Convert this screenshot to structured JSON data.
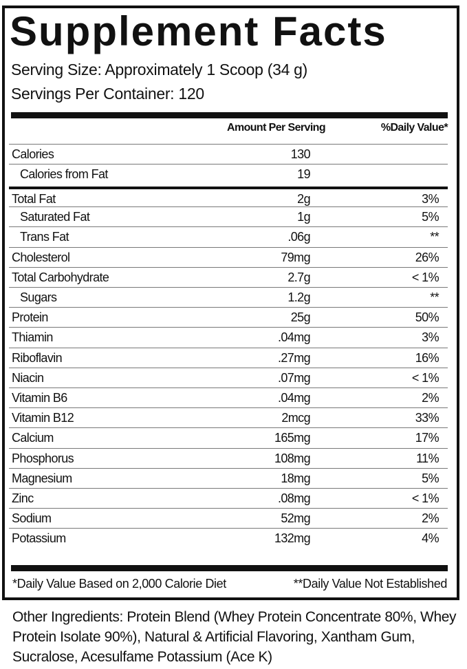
{
  "title": "Supplement Facts",
  "serving_size": "Serving Size: Approximately 1 Scoop (34 g)",
  "servings_per_container": "Servings Per Container: 120",
  "header": {
    "amount": "Amount Per Serving",
    "dv": "%Daily Value*"
  },
  "rows": [
    {
      "name": "Calories",
      "amount": "130",
      "dv": "",
      "indent": false
    },
    {
      "name": "Calories from Fat",
      "amount": "19",
      "dv": "",
      "indent": true
    },
    {
      "name": "Total Fat",
      "amount": "2g",
      "dv": "3%",
      "indent": false
    },
    {
      "name": "Saturated Fat",
      "amount": "1g",
      "dv": "5%",
      "indent": true
    },
    {
      "name": "Trans Fat",
      "amount": ".06g",
      "dv": "**",
      "indent": true
    },
    {
      "name": "Cholesterol",
      "amount": "79mg",
      "dv": "26%",
      "indent": false
    },
    {
      "name": "Total Carbohydrate",
      "amount": "2.7g",
      "dv": "< 1%",
      "indent": false
    },
    {
      "name": "Sugars",
      "amount": "1.2g",
      "dv": "**",
      "indent": true
    },
    {
      "name": "Protein",
      "amount": "25g",
      "dv": "50%",
      "indent": false
    },
    {
      "name": "Thiamin",
      "amount": ".04mg",
      "dv": "3%",
      "indent": false
    },
    {
      "name": "Riboflavin",
      "amount": ".27mg",
      "dv": "16%",
      "indent": false
    },
    {
      "name": "Niacin",
      "amount": ".07mg",
      "dv": "< 1%",
      "indent": false
    },
    {
      "name": "Vitamin B6",
      "amount": ".04mg",
      "dv": "2%",
      "indent": false
    },
    {
      "name": "Vitamin B12",
      "amount": "2mcg",
      "dv": "33%",
      "indent": false
    },
    {
      "name": "Calcium",
      "amount": "165mg",
      "dv": "17%",
      "indent": false
    },
    {
      "name": "Phosphorus",
      "amount": "108mg",
      "dv": "11%",
      "indent": false
    },
    {
      "name": "Magnesium",
      "amount": "18mg",
      "dv": "5%",
      "indent": false
    },
    {
      "name": "Zinc",
      "amount": ".08mg",
      "dv": "< 1%",
      "indent": false
    },
    {
      "name": "Sodium",
      "amount": "52mg",
      "dv": "2%",
      "indent": false
    },
    {
      "name": "Potassium",
      "amount": "132mg",
      "dv": "4%",
      "indent": false
    }
  ],
  "footnotes": {
    "dv_basis": "*Daily Value Based on 2,000 Calorie Diet",
    "dv_not_established": "**Daily Value Not Established"
  },
  "other_ingredients": "Other Ingredients: Protein Blend (Whey Protein Concentrate 80%, Whey Protein Isolate 90%), Natural & Artificial Flavoring, Xantham Gum, Sucralose, Acesulfame Potassium (Ace K)"
}
